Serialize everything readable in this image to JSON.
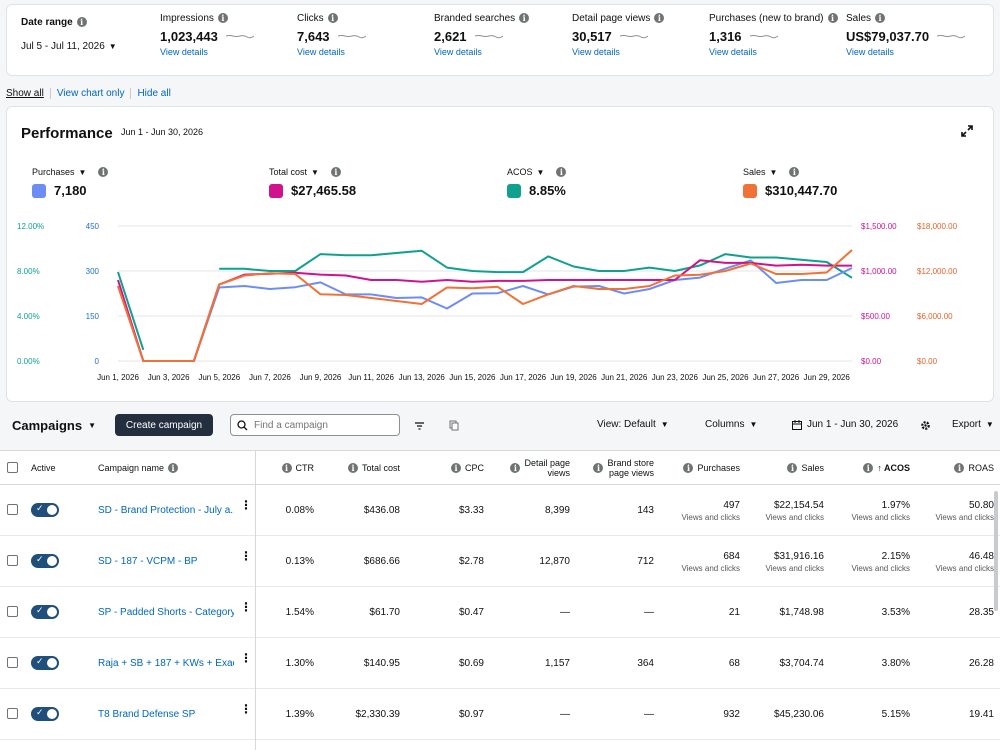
{
  "metrics": {
    "date_range": {
      "label": "Date range",
      "value": "Jul 5 - Jul 11, 2026"
    },
    "items": [
      {
        "label": "Impressions",
        "value": "1,023,443",
        "link": "View details"
      },
      {
        "label": "Clicks",
        "value": "7,643",
        "link": "View details"
      },
      {
        "label": "Branded searches",
        "value": "2,621",
        "link": "View details"
      },
      {
        "label": "Detail page views",
        "value": "30,517",
        "link": "View details"
      },
      {
        "label": "Purchases (new to brand)",
        "value": "1,316",
        "link": "View details"
      },
      {
        "label": "Sales",
        "value": "US$79,037.70",
        "link": "View details"
      }
    ]
  },
  "show_links": [
    "Show all",
    "View chart only",
    "Hide all"
  ],
  "performance": {
    "title": "Performance",
    "dates": "Jun 1 - Jun 30, 2026",
    "legend": [
      {
        "label": "Purchases",
        "value": "7,180",
        "color": "#6d8df5"
      },
      {
        "label": "Total cost",
        "value": "$27,465.58",
        "color": "#d1128d"
      },
      {
        "label": "ACOS",
        "value": "8.85%",
        "color": "#0fa18e"
      },
      {
        "label": "Sales",
        "value": "$310,447.70",
        "color": "#f07236"
      }
    ]
  },
  "chart_data": {
    "type": "line",
    "x": [
      "Jun 1, 2026",
      "Jun 2, 2026",
      "Jun 3, 2026",
      "Jun 4, 2026",
      "Jun 5, 2026",
      "Jun 6, 2026",
      "Jun 7, 2026",
      "Jun 8, 2026",
      "Jun 9, 2026",
      "Jun 10, 2026",
      "Jun 11, 2026",
      "Jun 12, 2026",
      "Jun 13, 2026",
      "Jun 14, 2026",
      "Jun 15, 2026",
      "Jun 16, 2026",
      "Jun 17, 2026",
      "Jun 18, 2026",
      "Jun 19, 2026",
      "Jun 20, 2026",
      "Jun 21, 2026",
      "Jun 22, 2026",
      "Jun 23, 2026",
      "Jun 24, 2026",
      "Jun 25, 2026",
      "Jun 26, 2026",
      "Jun 27, 2026",
      "Jun 28, 2026",
      "Jun 29, 2026",
      "Jun 30, 2026"
    ],
    "x_tick_labels": [
      "Jun 1, 2026",
      "Jun 3, 2026",
      "Jun 5, 2026",
      "Jun 7, 2026",
      "Jun 9, 2026",
      "Jun 11, 2026",
      "Jun 13, 2026",
      "Jun 15, 2026",
      "Jun 17, 2026",
      "Jun 19, 2026",
      "Jun 21, 2026",
      "Jun 23, 2026",
      "Jun 25, 2026",
      "Jun 27, 2026",
      "Jun 29, 2026"
    ],
    "axes": [
      {
        "id": "acos",
        "side": "left",
        "ticks": [
          "0.00%",
          "4.00%",
          "8.00%",
          "12.00%"
        ],
        "range": [
          0,
          12
        ],
        "color": "#0fa18e"
      },
      {
        "id": "purchases",
        "side": "left",
        "ticks": [
          "0",
          "150",
          "300",
          "450"
        ],
        "range": [
          0,
          450
        ],
        "color": "#1f6fd6"
      },
      {
        "id": "cost",
        "side": "right",
        "ticks": [
          "$0.00",
          "$500.00",
          "$1,000.00",
          "$1,500.00"
        ],
        "range": [
          0,
          1500
        ],
        "color": "#d1128d"
      },
      {
        "id": "sales",
        "side": "right",
        "ticks": [
          "$0.00",
          "$6,000.00",
          "$12,000.00",
          "$18,000.00"
        ],
        "range": [
          0,
          18000
        ],
        "color": "#e8622a"
      }
    ],
    "series": [
      {
        "name": "ACOS",
        "axis": "acos",
        "color": "#0fa18e",
        "values": [
          7.9,
          1.0,
          null,
          null,
          8.2,
          8.2,
          8.0,
          8.0,
          9.5,
          9.4,
          9.4,
          9.6,
          9.8,
          8.3,
          8.0,
          7.9,
          7.9,
          9.3,
          8.4,
          8.0,
          8.0,
          8.3,
          8.0,
          8.5,
          9.5,
          9.2,
          9.2,
          9.0,
          8.8,
          7.4
        ]
      },
      {
        "name": "Purchases",
        "axis": "purchases",
        "color": "#6d8df5",
        "values": [
          250,
          0,
          0,
          0,
          245,
          250,
          240,
          246,
          262,
          222,
          222,
          210,
          212,
          175,
          225,
          226,
          250,
          222,
          248,
          250,
          225,
          240,
          270,
          278,
          308,
          335,
          260,
          270,
          270,
          310
        ]
      },
      {
        "name": "Total cost",
        "axis": "cost",
        "color": "#d1128d",
        "values": [
          900,
          0,
          0,
          0,
          850,
          960,
          970,
          980,
          960,
          950,
          900,
          900,
          880,
          900,
          880,
          890,
          890,
          900,
          900,
          900,
          900,
          900,
          900,
          1120,
          1090,
          1090,
          1060,
          1070,
          1060,
          1060
        ]
      },
      {
        "name": "Sales",
        "axis": "sales",
        "color": "#f07236",
        "values": [
          10000,
          0,
          0,
          0,
          10200,
          11400,
          11700,
          11600,
          8900,
          8800,
          8400,
          8000,
          7600,
          9800,
          9700,
          9900,
          7600,
          8900,
          10000,
          9600,
          9600,
          10000,
          11400,
          11500,
          12000,
          13000,
          11600,
          11600,
          11800,
          14800
        ]
      }
    ],
    "grid": true
  },
  "campaigns": {
    "title": "Campaigns",
    "create_label": "Create campaign",
    "search_placeholder": "Find a campaign",
    "view_label": "View: Default",
    "columns_label": "Columns",
    "date_label": "Jun 1 - Jun 30, 2026",
    "export_label": "Export",
    "headers": {
      "active": "Active",
      "name": "Campaign name",
      "ctr": "CTR",
      "cost": "Total cost",
      "cpc": "CPC",
      "dpv_1": "Detail page",
      "dpv_2": "views",
      "bspv_1": "Brand store",
      "bspv_2": "page views",
      "purchases": "Purchases",
      "sales": "Sales",
      "acos": "↑ ACOS",
      "roas": "ROAS"
    },
    "rows": [
      {
        "name": "SD - Brand Protection - July a...",
        "ctr": "0.08%",
        "cost": "$436.08",
        "cpc": "$3.33",
        "dpv": "8,399",
        "bspv": "143",
        "purchases": "497",
        "purchases_sub": "Views and clicks",
        "sales": "$22,154.54",
        "sales_sub": "Views and clicks",
        "acos": "1.97%",
        "acos_sub": "Views and clicks",
        "roas": "50.80",
        "roas_sub": "Views and clicks"
      },
      {
        "name": "SD - 187 - VCPM - BP",
        "ctr": "0.13%",
        "cost": "$686.66",
        "cpc": "$2.78",
        "dpv": "12,870",
        "bspv": "712",
        "purchases": "684",
        "purchases_sub": "Views and clicks",
        "sales": "$31,916.16",
        "sales_sub": "Views and clicks",
        "acos": "2.15%",
        "acos_sub": "Views and clicks",
        "roas": "46.48",
        "roas_sub": "Views and clicks"
      },
      {
        "name": "SP - Padded Shorts - Category",
        "ctr": "1.54%",
        "cost": "$61.70",
        "cpc": "$0.47",
        "dpv": "—",
        "bspv": "—",
        "purchases": "21",
        "purchases_sub": "",
        "sales": "$1,748.98",
        "sales_sub": "",
        "acos": "3.53%",
        "acos_sub": "",
        "roas": "28.35",
        "roas_sub": ""
      },
      {
        "name": "Raja + SB + 187 + KWs + Exac...",
        "ctr": "1.30%",
        "cost": "$140.95",
        "cpc": "$0.69",
        "dpv": "1,157",
        "bspv": "364",
        "purchases": "68",
        "purchases_sub": "",
        "sales": "$3,704.74",
        "sales_sub": "",
        "acos": "3.80%",
        "acos_sub": "",
        "roas": "26.28",
        "roas_sub": ""
      },
      {
        "name": "T8 Brand Defense SP",
        "ctr": "1.39%",
        "cost": "$2,330.39",
        "cpc": "$0.97",
        "dpv": "—",
        "bspv": "—",
        "purchases": "932",
        "purchases_sub": "",
        "sales": "$45,230.06",
        "sales_sub": "",
        "acos": "5.15%",
        "acos_sub": "",
        "roas": "19.41",
        "roas_sub": ""
      }
    ]
  }
}
